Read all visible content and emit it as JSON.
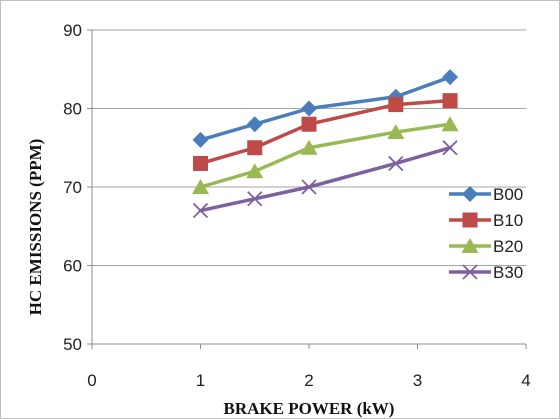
{
  "chart_data": {
    "type": "line",
    "title": "",
    "xlabel": "BRAKE POWER (kW)",
    "ylabel": "HC EMISSIONS (PPM)",
    "xlim": [
      0,
      4
    ],
    "ylim": [
      50,
      90
    ],
    "xticks": [
      0,
      1,
      2,
      3,
      4
    ],
    "yticks": [
      50,
      60,
      70,
      80,
      90
    ],
    "grid": "horizontal",
    "legend": "right",
    "series": [
      {
        "name": "B00",
        "color": "#4a7ebb",
        "marker": "diamond",
        "x": [
          1,
          1.5,
          2,
          2.8,
          3.3
        ],
        "y": [
          76,
          78,
          80,
          81.5,
          84
        ]
      },
      {
        "name": "B10",
        "color": "#be4b48",
        "marker": "square",
        "x": [
          1,
          1.5,
          2,
          2.8,
          3.3
        ],
        "y": [
          73,
          75,
          78,
          80.5,
          81
        ]
      },
      {
        "name": "B20",
        "color": "#98b954",
        "marker": "triangle",
        "x": [
          1,
          1.5,
          2,
          2.8,
          3.3
        ],
        "y": [
          70,
          72,
          75,
          77,
          78
        ]
      },
      {
        "name": "B30",
        "color": "#7d60a0",
        "marker": "x",
        "x": [
          1,
          1.5,
          2,
          2.8,
          3.3
        ],
        "y": [
          67,
          68.5,
          70,
          73,
          75
        ]
      }
    ]
  }
}
